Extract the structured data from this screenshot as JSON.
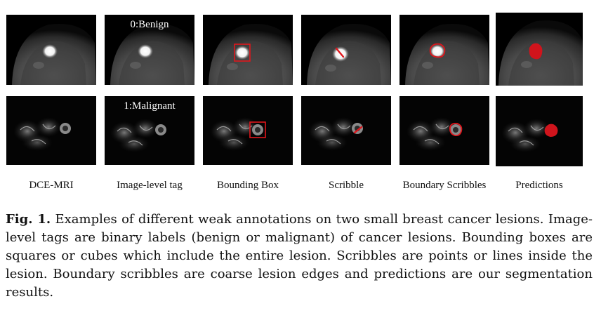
{
  "tags": {
    "row1": "0:Benign",
    "row2": "1:Malignant"
  },
  "columns": [
    "DCE-MRI",
    "Image-level tag",
    "Bounding Box",
    "Scribble",
    "Boundary Scribbles",
    "Predictions"
  ],
  "caption": {
    "label": "Fig. 1.",
    "text": "Examples of different weak annotations on two small breast cancer lesions. Image-level tags are binary labels (benign or malignant) of cancer lesions. Bounding boxes are squares or cubes which include the entire lesion. Scribbles are points or lines inside the lesion. Boundary scribbles are coarse lesion edges and predictions are our segmentation results."
  },
  "colors": {
    "annotation": "#e0161c",
    "background": "#000000"
  }
}
